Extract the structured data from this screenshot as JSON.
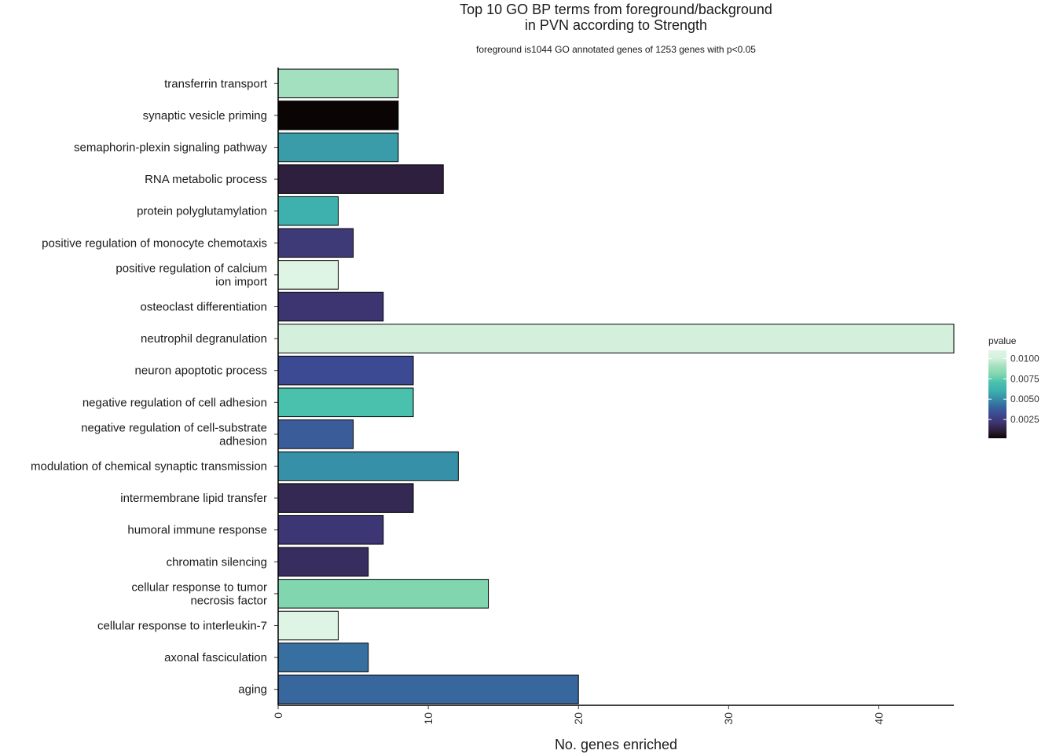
{
  "chart_data": {
    "type": "bar",
    "orientation": "horizontal",
    "title_lines": [
      "Top 10 GO BP terms from foreground/background",
      "in PVN according to Strength"
    ],
    "subtitle": "foreground is1044 GO annotated genes of 1253 genes with p<0.05",
    "xlabel": "No. genes enriched",
    "ylabel": "",
    "xlim": [
      0,
      45
    ],
    "x_ticks": [
      0,
      10,
      20,
      30,
      40
    ],
    "grid": false,
    "bar_outline_color": "#000000",
    "categories": [
      {
        "lines": [
          "transferrin transport"
        ],
        "value": 8,
        "pvalue": 0.0088,
        "color": "#a3e0bf"
      },
      {
        "lines": [
          "synaptic vesicle priming"
        ],
        "value": 8,
        "pvalue": 0.0002,
        "color": "#0b0405"
      },
      {
        "lines": [
          "semaphorin-plexin signaling pathway"
        ],
        "value": 8,
        "pvalue": 0.0062,
        "color": "#3a9ba9"
      },
      {
        "lines": [
          "RNA metabolic process"
        ],
        "value": 11,
        "pvalue": 0.0012,
        "color": "#2e1f3f"
      },
      {
        "lines": [
          "protein polyglutamylation"
        ],
        "value": 4,
        "pvalue": 0.0067,
        "color": "#3eb1ae"
      },
      {
        "lines": [
          "positive regulation of monocyte chemotaxis"
        ],
        "value": 5,
        "pvalue": 0.0025,
        "color": "#3e3a78"
      },
      {
        "lines": [
          "positive regulation of calcium",
          "ion import"
        ],
        "value": 4,
        "pvalue": 0.011,
        "color": "#def5e6"
      },
      {
        "lines": [
          "osteoclast differentiation"
        ],
        "value": 7,
        "pvalue": 0.0022,
        "color": "#3d3572"
      },
      {
        "lines": [
          "neutrophil degranulation"
        ],
        "value": 45,
        "pvalue": 0.0108,
        "color": "#d4f0dc"
      },
      {
        "lines": [
          "neuron apoptotic process"
        ],
        "value": 9,
        "pvalue": 0.0034,
        "color": "#3b4a92"
      },
      {
        "lines": [
          "negative regulation of cell adhesion"
        ],
        "value": 9,
        "pvalue": 0.0076,
        "color": "#4ac1ad"
      },
      {
        "lines": [
          "negative regulation of cell-substrate",
          "adhesion"
        ],
        "value": 5,
        "pvalue": 0.0045,
        "color": "#3a5d9a"
      },
      {
        "lines": [
          "modulation of chemical synaptic transmission"
        ],
        "value": 12,
        "pvalue": 0.006,
        "color": "#3691a8"
      },
      {
        "lines": [
          "intermembrane lipid transfer"
        ],
        "value": 9,
        "pvalue": 0.0016,
        "color": "#342952"
      },
      {
        "lines": [
          "humoral immune response"
        ],
        "value": 7,
        "pvalue": 0.0024,
        "color": "#3d3675"
      },
      {
        "lines": [
          "chromatin silencing"
        ],
        "value": 6,
        "pvalue": 0.0019,
        "color": "#372d5e"
      },
      {
        "lines": [
          "cellular response to tumor",
          "necrosis factor"
        ],
        "value": 14,
        "pvalue": 0.0083,
        "color": "#81d6b0"
      },
      {
        "lines": [
          "cellular response to interleukin-7"
        ],
        "value": 4,
        "pvalue": 0.011,
        "color": "#def5e6"
      },
      {
        "lines": [
          "axonal fasciculation"
        ],
        "value": 6,
        "pvalue": 0.005,
        "color": "#3770a0"
      },
      {
        "lines": [
          "aging"
        ],
        "value": 20,
        "pvalue": 0.0046,
        "color": "#38679e"
      }
    ],
    "legend": {
      "title": "pvalue",
      "placement": "right",
      "range": [
        0.0002,
        0.011
      ],
      "ticks": [
        {
          "value": 0.0025,
          "label": "0.0025"
        },
        {
          "value": 0.005,
          "label": "0.0050"
        },
        {
          "value": 0.0075,
          "label": "0.0075"
        },
        {
          "value": 0.01,
          "label": "0.0100"
        }
      ],
      "gradient_colors": [
        "#0b0405",
        "#2e1f3f",
        "#3d3572",
        "#3b4a92",
        "#38679e",
        "#3691a8",
        "#3eb1ae",
        "#4ac1ad",
        "#81d6b0",
        "#a3e0bf",
        "#d4f0dc",
        "#def5e6"
      ]
    }
  }
}
